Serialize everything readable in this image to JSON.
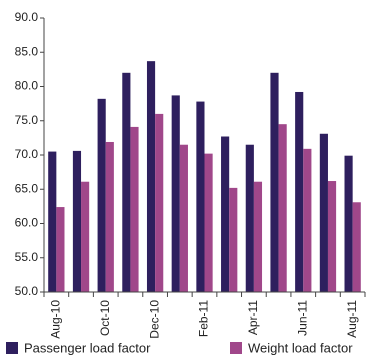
{
  "chart_data": {
    "type": "bar",
    "categories": [
      "Aug-10",
      null,
      "Oct-10",
      null,
      "Dec-10",
      null,
      "Feb-11",
      null,
      "Apr-11",
      null,
      "Jun-11",
      null,
      "Aug-11"
    ],
    "series": [
      {
        "name": "Passenger load factor",
        "color": "#2e1f5e",
        "values": [
          70.5,
          70.6,
          78.2,
          82.0,
          83.7,
          78.7,
          77.8,
          72.7,
          71.5,
          82.0,
          79.2,
          73.1,
          69.9
        ]
      },
      {
        "name": "Weight load factor",
        "color": "#a0478a",
        "values": [
          62.4,
          66.1,
          71.9,
          74.1,
          76.0,
          71.5,
          70.2,
          65.2,
          66.1,
          74.5,
          70.9,
          66.2,
          63.1
        ]
      }
    ],
    "ylim": [
      50,
      90
    ],
    "yticks": [
      {
        "value": 50,
        "label": "50.0"
      },
      {
        "value": 55,
        "label": "55.0"
      },
      {
        "value": 60,
        "label": "60.0"
      },
      {
        "value": 65,
        "label": "65.0"
      },
      {
        "value": 70,
        "label": "70.0"
      },
      {
        "value": 75,
        "label": "75.0"
      },
      {
        "value": 80,
        "label": "80.0"
      },
      {
        "value": 85,
        "label": "85.0"
      },
      {
        "value": 90,
        "label": "90.0"
      }
    ],
    "grid": false,
    "legend": "bottom"
  }
}
